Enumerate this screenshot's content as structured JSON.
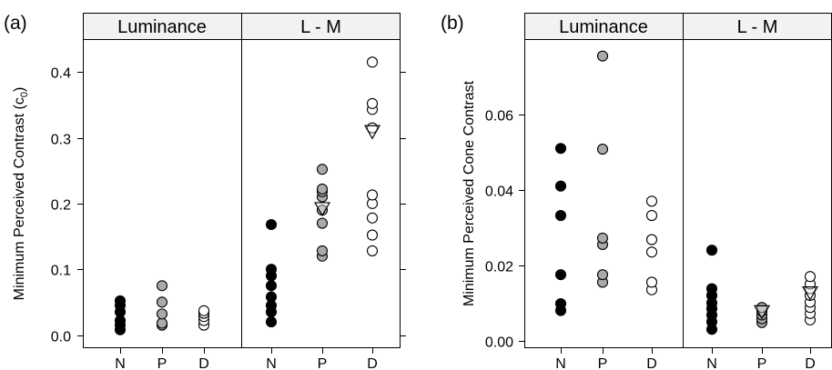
{
  "figure": {
    "panels": [
      "(a)",
      "(b)"
    ]
  },
  "chart_data": [
    {
      "type": "scatter",
      "panel_label": "(a)",
      "ylabel": "Minimum Perceived Contrast (c",
      "ylabel_sub": "0",
      "ylabel_close": ")",
      "ylim": [
        -0.02,
        0.45
      ],
      "yticks": [
        "0.0",
        "0.1",
        "0.2",
        "0.3",
        "0.4"
      ],
      "ytick_values": [
        0.0,
        0.1,
        0.2,
        0.3,
        0.4
      ],
      "categories": [
        "N",
        "P",
        "D"
      ],
      "facets": [
        {
          "name": "Luminance",
          "groups": [
            {
              "category": "N",
              "color": "#000000",
              "values": [
                0.008,
                0.015,
                0.022,
                0.035,
                0.045,
                0.052
              ]
            },
            {
              "category": "P",
              "color": "#aaaaaa",
              "values": [
                0.015,
                0.018,
                0.032,
                0.05,
                0.075
              ]
            },
            {
              "category": "D",
              "color": "#ffffff",
              "values": [
                0.015,
                0.022,
                0.028,
                0.033,
                0.037
              ]
            }
          ],
          "markers": []
        },
        {
          "name": "L - M",
          "groups": [
            {
              "category": "N",
              "color": "#000000",
              "values": [
                0.02,
                0.035,
                0.045,
                0.058,
                0.075,
                0.09,
                0.1,
                0.168
              ]
            },
            {
              "category": "P",
              "color": "#aaaaaa",
              "values": [
                0.12,
                0.128,
                0.17,
                0.19,
                0.21,
                0.218,
                0.222,
                0.252
              ]
            },
            {
              "category": "D",
              "color": "#ffffff",
              "values": [
                0.128,
                0.152,
                0.178,
                0.2,
                0.213,
                0.315,
                0.343,
                0.352,
                0.415
              ]
            }
          ],
          "markers": [
            {
              "category": "P",
              "value": 0.193
            },
            {
              "category": "D",
              "value": 0.31
            }
          ]
        }
      ]
    },
    {
      "type": "scatter",
      "panel_label": "(b)",
      "ylabel": "Minimum Perceived Cone Contrast",
      "ylim": [
        -0.002,
        0.08
      ],
      "yticks": [
        "0.00",
        "0.02",
        "0.04",
        "0.06"
      ],
      "ytick_values": [
        0.0,
        0.02,
        0.04,
        0.06
      ],
      "categories": [
        "N",
        "P",
        "D"
      ],
      "facets": [
        {
          "name": "Luminance",
          "groups": [
            {
              "category": "N",
              "color": "#000000",
              "values": [
                0.008,
                0.0098,
                0.0175,
                0.0332,
                0.041,
                0.051
              ]
            },
            {
              "category": "P",
              "color": "#aaaaaa",
              "values": [
                0.0155,
                0.0175,
                0.0255,
                0.0272,
                0.0508,
                0.0755
              ]
            },
            {
              "category": "D",
              "color": "#ffffff",
              "values": [
                0.0135,
                0.0155,
                0.0235,
                0.0268,
                0.0332,
                0.037
              ]
            }
          ],
          "markers": []
        },
        {
          "name": "L - M",
          "groups": [
            {
              "category": "N",
              "color": "#000000",
              "values": [
                0.003,
                0.005,
                0.0068,
                0.0085,
                0.01,
                0.012,
                0.0138,
                0.024
              ]
            },
            {
              "category": "P",
              "color": "#aaaaaa",
              "values": [
                0.0048,
                0.0058,
                0.0068,
                0.0078,
                0.0088
              ]
            },
            {
              "category": "D",
              "color": "#ffffff",
              "values": [
                0.0055,
                0.0072,
                0.0088,
                0.0102,
                0.012,
                0.0138,
                0.015,
                0.017
              ]
            }
          ],
          "markers": [
            {
              "category": "P",
              "value": 0.0078
            },
            {
              "category": "D",
              "value": 0.0128
            }
          ]
        }
      ]
    }
  ]
}
